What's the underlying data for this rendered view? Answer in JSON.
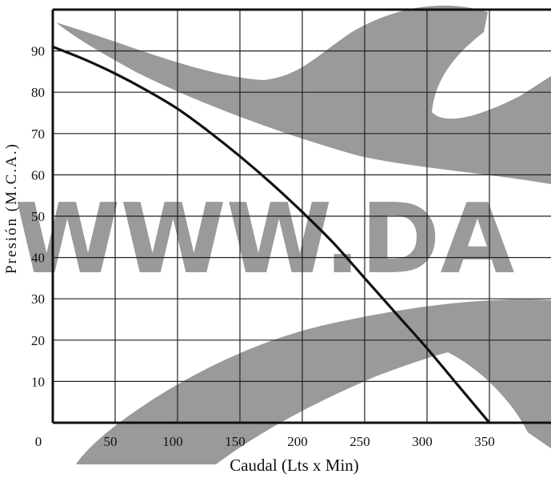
{
  "chart_data": {
    "type": "line",
    "xlabel": "Caudal (Lts x Min)",
    "ylabel": "Presión (M.C.A.)",
    "xlim": [
      0,
      400
    ],
    "ylim": [
      0,
      100
    ],
    "x_ticks": [
      0,
      50,
      100,
      150,
      200,
      250,
      300,
      350
    ],
    "y_ticks": [
      10,
      20,
      30,
      40,
      50,
      60,
      70,
      80,
      90
    ],
    "grid": true,
    "series": [
      {
        "x": [
          0,
          25,
          50,
          75,
          100,
          125,
          150,
          175,
          200,
          225,
          250,
          275,
          300,
          325,
          350
        ],
        "y": [
          91,
          88,
          84.5,
          80.5,
          76,
          70.5,
          64.5,
          58,
          51,
          43.5,
          35,
          26.5,
          18,
          9,
          0
        ],
        "color": "#111111"
      }
    ]
  },
  "watermark": {
    "text": "WWW.DA",
    "color": "#9a9a9a"
  }
}
